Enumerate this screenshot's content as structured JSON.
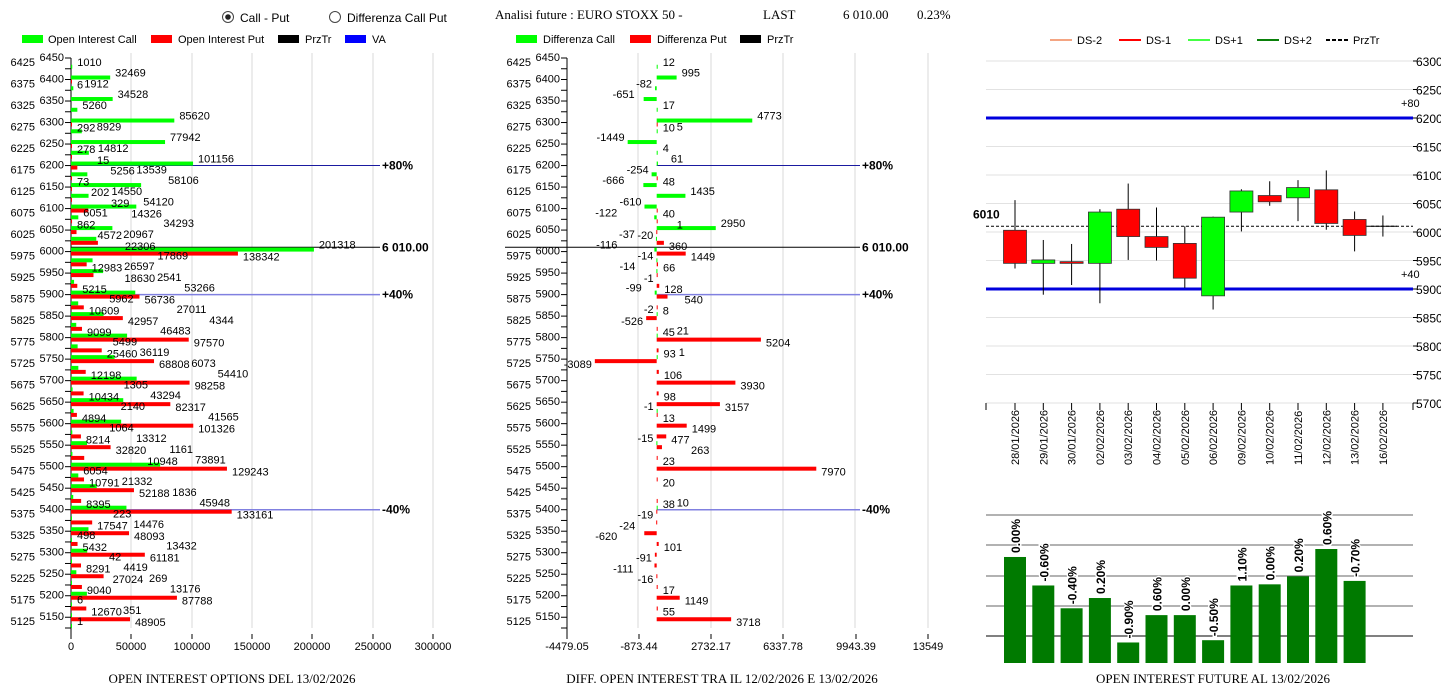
{
  "header": {
    "radio_call_put": "Call - Put",
    "radio_diff": "Differenza Call Put",
    "radio_selected": "Call - Put",
    "title": "Analisi future : EURO STOXX 50 -",
    "last_label": "LAST",
    "last_value": "6 010.00",
    "last_change": "0.23%"
  },
  "colors": {
    "call": "#00ff00",
    "put": "#ff0000",
    "prztr": "#000000",
    "va": "#0000ff",
    "va_light": "#8080e0",
    "candle_up": "#00ff00",
    "candle_down": "#ff0000",
    "oi_future": "#007a00"
  },
  "chart_data": [
    {
      "type": "bar",
      "orientation": "horizontal",
      "title": "OPEN INTEREST OPTIONS DEL 13/02/2026",
      "legend": [
        "Open Interest Call",
        "Open Interest Put",
        "PrzTr",
        "VA"
      ],
      "legend_placement": "top",
      "xlim": [
        0,
        300000
      ],
      "xticks": [
        "0",
        "50000",
        "100000",
        "150000",
        "200000",
        "250000",
        "300000"
      ],
      "ylim": [
        5125,
        6450
      ],
      "grid": true,
      "reference_lines": [
        {
          "strike": 6200,
          "label": "+80%",
          "style": "va"
        },
        {
          "strike": 6010,
          "label": "6 010.00",
          "style": "prztr"
        },
        {
          "strike": 5900,
          "label": "+40%",
          "style": "va_light"
        },
        {
          "strike": 5400,
          "label": "-40%",
          "style": "va_light"
        }
      ],
      "columns": [
        "strike",
        "call",
        "put"
      ],
      "rows": [
        [
          6450,
          null,
          null
        ],
        [
          6425,
          1010,
          null
        ],
        [
          6400,
          32469,
          6
        ],
        [
          6375,
          1912,
          null
        ],
        [
          6350,
          34528,
          null
        ],
        [
          6325,
          5260,
          null
        ],
        [
          6300,
          85620,
          292
        ],
        [
          6275,
          8929,
          null
        ],
        [
          6250,
          77942,
          278
        ],
        [
          6225,
          14812,
          15
        ],
        [
          6200,
          101156,
          5256
        ],
        [
          6175,
          13539,
          73
        ],
        [
          6150,
          58106,
          202
        ],
        [
          6125,
          14550,
          329
        ],
        [
          6100,
          54120,
          14326
        ],
        [
          6075,
          6051,
          862
        ],
        [
          6050,
          34293,
          4572
        ],
        [
          6025,
          20967,
          22306
        ],
        [
          6000,
          201318,
          138342
        ],
        [
          5975,
          17869,
          12983
        ],
        [
          5950,
          26597,
          18630
        ],
        [
          5925,
          2541,
          5215
        ],
        [
          5900,
          53266,
          56736
        ],
        [
          5875,
          5962,
          10609
        ],
        [
          5850,
          27011,
          42957
        ],
        [
          5825,
          4344,
          9099
        ],
        [
          5800,
          46483,
          97570
        ],
        [
          5775,
          5499,
          25460
        ],
        [
          5750,
          36119,
          68808
        ],
        [
          5725,
          6073,
          12198
        ],
        [
          5700,
          54410,
          98258
        ],
        [
          5675,
          1305,
          10434
        ],
        [
          5650,
          43294,
          82317
        ],
        [
          5625,
          2140,
          4894
        ],
        [
          5600,
          41565,
          101326
        ],
        [
          5575,
          1064,
          8214
        ],
        [
          5550,
          13312,
          32820
        ],
        [
          5525,
          1161,
          10948
        ],
        [
          5500,
          73891,
          129243
        ],
        [
          5475,
          6054,
          10791
        ],
        [
          5450,
          21332,
          52188
        ],
        [
          5425,
          1836,
          8395
        ],
        [
          5400,
          45948,
          133161
        ],
        [
          5375,
          223,
          17547
        ],
        [
          5350,
          14476,
          48093
        ],
        [
          5325,
          498,
          5432
        ],
        [
          5300,
          13432,
          61181
        ],
        [
          5275,
          42,
          8291
        ],
        [
          5250,
          4419,
          27024
        ],
        [
          5225,
          269,
          9040
        ],
        [
          5200,
          13176,
          87788
        ],
        [
          5175,
          6,
          12670
        ],
        [
          5150,
          351,
          48905
        ],
        [
          5125,
          1,
          null
        ]
      ]
    },
    {
      "type": "bar",
      "orientation": "horizontal",
      "title": "DIFF. OPEN INTEREST TRA IL 12/02/2026 E 13/02/2026",
      "legend": [
        "Differenza Call",
        "Differenza Put",
        "PrzTr"
      ],
      "legend_placement": "top",
      "xlim": [
        -4479.05,
        13549
      ],
      "xticks": [
        "-4479.05",
        "-873.44",
        "2732.17",
        "6337.78",
        "9943.39",
        "13549"
      ],
      "ylim": [
        5125,
        6450
      ],
      "grid": true,
      "reference_lines": [
        {
          "strike": 6200,
          "label": "+80%",
          "style": "va"
        },
        {
          "strike": 6010,
          "label": "6 010.00",
          "style": "prztr"
        },
        {
          "strike": 5900,
          "label": "+40%",
          "style": "va_light"
        },
        {
          "strike": 5400,
          "label": "-40%",
          "style": "va_light"
        }
      ],
      "columns": [
        "strike",
        "diff_call",
        "diff_put"
      ],
      "rows": [
        [
          6450,
          null,
          null
        ],
        [
          6425,
          12,
          null
        ],
        [
          6400,
          995,
          null
        ],
        [
          6375,
          -82,
          null
        ],
        [
          6350,
          -651,
          null
        ],
        [
          6325,
          17,
          null
        ],
        [
          6300,
          4773,
          10
        ],
        [
          6275,
          5,
          null
        ],
        [
          6250,
          -1449,
          null
        ],
        [
          6225,
          4,
          null
        ],
        [
          6200,
          61,
          null
        ],
        [
          6175,
          -254,
          48
        ],
        [
          6150,
          -666,
          null
        ],
        [
          6125,
          1435,
          null
        ],
        [
          6100,
          -610,
          40
        ],
        [
          6075,
          -122,
          1
        ],
        [
          6050,
          2950,
          -20
        ],
        [
          6025,
          -37,
          360
        ],
        [
          6000,
          -116,
          1449
        ],
        [
          5975,
          -14,
          66
        ],
        [
          5950,
          -14,
          -1
        ],
        [
          5925,
          null,
          128
        ],
        [
          5900,
          -99,
          540
        ],
        [
          5875,
          null,
          8
        ],
        [
          5850,
          -2,
          -526
        ],
        [
          5825,
          null,
          45
        ],
        [
          5800,
          21,
          5204
        ],
        [
          5775,
          null,
          93
        ],
        [
          5750,
          1,
          -3089
        ],
        [
          5725,
          null,
          106
        ],
        [
          5700,
          null,
          3930
        ],
        [
          5675,
          null,
          98
        ],
        [
          5650,
          null,
          3157
        ],
        [
          5625,
          -1,
          13
        ],
        [
          5600,
          null,
          1499
        ],
        [
          5575,
          null,
          477
        ],
        [
          5550,
          -15,
          263
        ],
        [
          5525,
          null,
          23
        ],
        [
          5500,
          null,
          7970
        ],
        [
          5475,
          null,
          20
        ],
        [
          5450,
          null,
          null
        ],
        [
          5425,
          null,
          38
        ],
        [
          5400,
          10,
          -19
        ],
        [
          5375,
          null,
          -24
        ],
        [
          5350,
          null,
          -620
        ],
        [
          5325,
          null,
          101
        ],
        [
          5300,
          null,
          -91
        ],
        [
          5275,
          null,
          -111
        ],
        [
          5250,
          null,
          -16
        ],
        [
          5225,
          null,
          17
        ],
        [
          5200,
          null,
          1149
        ],
        [
          5175,
          null,
          55
        ],
        [
          5150,
          null,
          3718
        ],
        [
          5125,
          null,
          null
        ]
      ]
    },
    {
      "type": "candlestick",
      "legend": [
        "DS-2",
        "DS-1",
        "DS+1",
        "DS+2",
        "PrzTr"
      ],
      "legend_colors": [
        "#f4a582",
        "#ff0000",
        "#44ff44",
        "#0a800a",
        "#000000"
      ],
      "legend_placement": "top",
      "ylim": [
        5700,
        6300
      ],
      "yticks": [
        "6300",
        "6250",
        "6200",
        "6150",
        "6100",
        "6050",
        "6000",
        "5950",
        "5900",
        "5850",
        "5800",
        "5750",
        "5700"
      ],
      "grid": true,
      "prztr": {
        "value": 6010,
        "label": "6010"
      },
      "levels": [
        {
          "value": 6200,
          "label": "+80"
        },
        {
          "value": 5900,
          "label": "+40"
        }
      ],
      "columns": [
        "date",
        "open",
        "high",
        "low",
        "close"
      ],
      "rows": [
        [
          "28/01/2026",
          6003,
          6056,
          5936,
          5945
        ],
        [
          "29/01/2026",
          5945,
          5986,
          5890,
          5951
        ],
        [
          "30/01/2026",
          5948,
          5979,
          5907,
          5945
        ],
        [
          "02/02/2026",
          5945,
          6040,
          5875,
          6035
        ],
        [
          "03/02/2026",
          6040,
          6085,
          5951,
          5992
        ],
        [
          "04/02/2026",
          5992,
          6043,
          5950,
          5973
        ],
        [
          "05/02/2026",
          5980,
          6010,
          5902,
          5919
        ],
        [
          "06/02/2026",
          5888,
          6027,
          5864,
          6026
        ],
        [
          "09/02/2026",
          6035,
          6075,
          6001,
          6072
        ],
        [
          "10/02/2026",
          6064,
          6089,
          6046,
          6053
        ],
        [
          "11/02/2026",
          6060,
          6091,
          6019,
          6078
        ],
        [
          "12/02/2026",
          6074,
          6108,
          6004,
          6015
        ],
        [
          "13/02/2026",
          6022,
          6036,
          5966,
          5994
        ],
        [
          "16/02/2026",
          6010,
          6029,
          5992,
          6010
        ]
      ]
    },
    {
      "type": "bar",
      "title": "OPEN INTEREST FUTURE AL 13/02/2026",
      "grid": true,
      "value_note_relative": true,
      "labels": [
        "0.00%",
        "-0.60%",
        "-0.40%",
        "0.20%",
        "-0.90%",
        "0.60%",
        "0.00%",
        "-0.50%",
        "1.10%",
        "0.00%",
        "0.20%",
        "0.60%",
        "-0.70%"
      ],
      "relative_values": [
        0.93,
        0.68,
        0.48,
        0.57,
        0.18,
        0.42,
        0.42,
        0.2,
        0.68,
        0.69,
        0.76,
        1.0,
        0.72
      ]
    }
  ]
}
